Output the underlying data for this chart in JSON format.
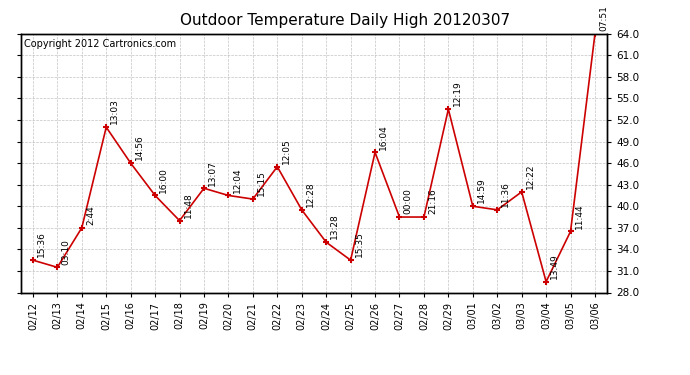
{
  "title": "Outdoor Temperature Daily High 20120307",
  "copyright_text": "Copyright 2012 Cartronics.com",
  "x_labels": [
    "02/12",
    "02/13",
    "02/14",
    "02/15",
    "02/16",
    "02/17",
    "02/18",
    "02/19",
    "02/20",
    "02/21",
    "02/22",
    "02/23",
    "02/24",
    "02/25",
    "02/26",
    "02/27",
    "02/28",
    "02/29",
    "03/01",
    "03/02",
    "03/03",
    "03/04",
    "03/05",
    "03/06"
  ],
  "y_values": [
    32.5,
    31.5,
    37.0,
    51.0,
    46.0,
    41.5,
    38.0,
    42.5,
    41.5,
    41.0,
    45.5,
    39.5,
    35.0,
    32.5,
    47.5,
    38.5,
    38.5,
    53.5,
    40.0,
    39.5,
    42.0,
    29.5,
    36.5,
    64.0
  ],
  "annotations": [
    "15:36",
    "03:10",
    "2:44",
    "13:03",
    "14:56",
    "16:00",
    "11:48",
    "13:07",
    "12:04",
    "15:15",
    "12:05",
    "12:28",
    "13:28",
    "15:35",
    "16:04",
    "00:00",
    "21:16",
    "12:19",
    "14:59",
    "11:36",
    "12:22",
    "13:49",
    "11:44",
    "07:51"
  ],
  "ylim": [
    28.0,
    64.0
  ],
  "yticks": [
    28.0,
    31.0,
    34.0,
    37.0,
    40.0,
    43.0,
    46.0,
    49.0,
    52.0,
    55.0,
    58.0,
    61.0,
    64.0
  ],
  "line_color": "#cc0000",
  "marker_color": "#cc0000",
  "bg_color": "#ffffff",
  "plot_bg_color": "#ffffff",
  "grid_color": "#aaaaaa",
  "title_fontsize": 11,
  "annotation_fontsize": 6.5,
  "copyright_fontsize": 7,
  "xlabel_fontsize": 7,
  "ylabel_fontsize": 7.5
}
